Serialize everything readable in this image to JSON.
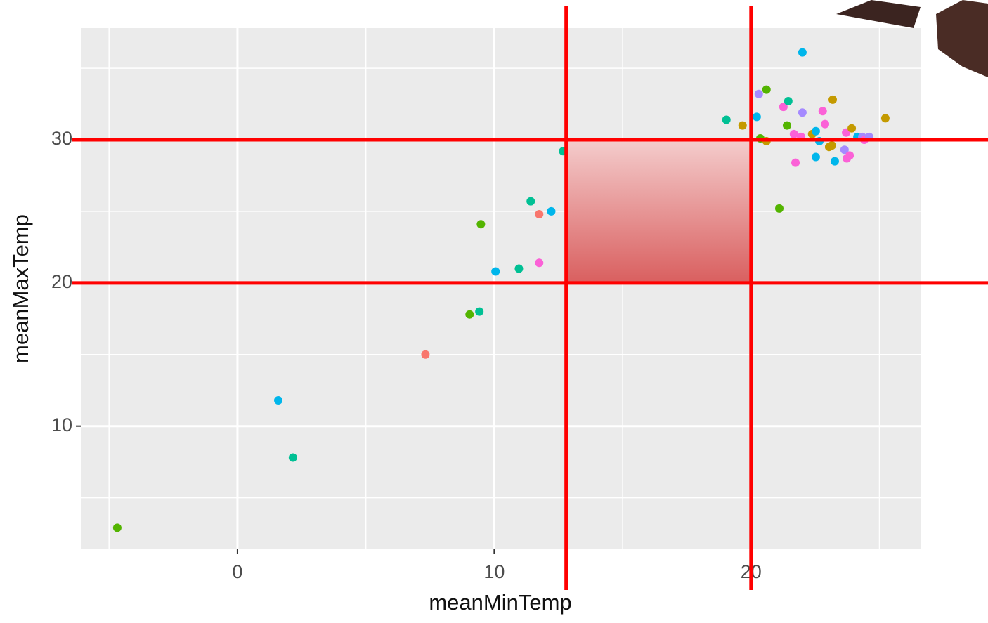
{
  "chart_data": {
    "type": "scatter",
    "x_label": "meanMinTemp",
    "y_label": "meanMaxTemp",
    "x": [
      -4.68,
      1.59,
      2.16,
      7.32,
      9.04,
      9.42,
      10.05,
      10.96,
      11.75,
      9.48,
      11.42,
      11.75,
      12.22,
      12.68,
      19.04,
      19.67,
      20.3,
      20.6,
      20.22,
      20.36,
      20.6,
      21.1,
      21.26,
      21.45,
      21.4,
      22.0,
      22.0,
      21.67,
      21.95,
      21.73,
      22.38,
      22.52,
      22.66,
      22.52,
      22.79,
      22.88,
      23.04,
      23.18,
      23.15,
      23.26,
      23.7,
      23.64,
      23.73,
      23.84,
      23.92,
      24.14,
      24.33,
      24.41,
      24.6,
      25.23
    ],
    "y": [
      2.9,
      11.8,
      7.8,
      15.0,
      17.8,
      18.0,
      20.8,
      21.0,
      21.4,
      24.1,
      25.7,
      24.8,
      25.0,
      29.2,
      31.4,
      31.0,
      33.2,
      33.5,
      31.6,
      30.1,
      29.9,
      25.2,
      32.3,
      32.7,
      31.0,
      36.1,
      31.9,
      30.4,
      30.2,
      28.4,
      30.4,
      30.6,
      29.9,
      28.8,
      32.0,
      31.1,
      29.5,
      32.8,
      29.6,
      28.5,
      30.5,
      29.3,
      28.7,
      28.9,
      30.8,
      30.2,
      30.2,
      30.0,
      30.2,
      31.5
    ],
    "colors": [
      "#53B400",
      "#00B6EB",
      "#00C094",
      "#F8766D",
      "#53B400",
      "#00C094",
      "#00B6EB",
      "#00C094",
      "#FB61D7",
      "#53B400",
      "#00C094",
      "#F8766D",
      "#00B6EB",
      "#00C094",
      "#00C094",
      "#C49A00",
      "#A58AFF",
      "#53B400",
      "#00B6EB",
      "#53B400",
      "#C49A00",
      "#53B400",
      "#FB61D7",
      "#00C094",
      "#53B400",
      "#00B6EB",
      "#A58AFF",
      "#FB61D7",
      "#FB61D7",
      "#FB61D7",
      "#C49A00",
      "#00B6EB",
      "#00B6EB",
      "#00B6EB",
      "#FB61D7",
      "#FB61D7",
      "#C49A00",
      "#C49A00",
      "#C49A00",
      "#00B6EB",
      "#FB61D7",
      "#A58AFF",
      "#FB61D7",
      "#FB61D7",
      "#C49A00",
      "#00B6EB",
      "#A58AFF",
      "#FB61D7",
      "#A58AFF",
      "#C49A00"
    ],
    "xlim": [
      -6.1,
      26.6
    ],
    "ylim": [
      1.4,
      37.8
    ],
    "xticks": [
      0,
      10,
      20
    ],
    "yticks": [
      10,
      20,
      30
    ],
    "grid": true,
    "reference_lines": {
      "x": [
        12.8,
        20
      ],
      "y": [
        20,
        30
      ],
      "color": "#ff0000"
    }
  }
}
